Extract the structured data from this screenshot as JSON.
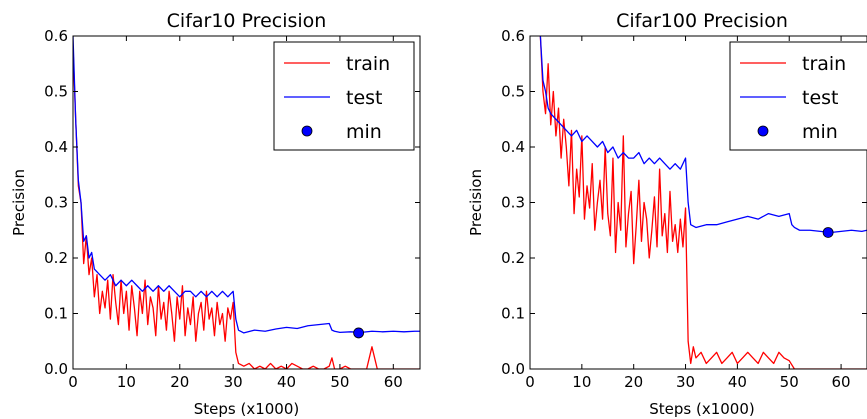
{
  "chart_data": [
    {
      "type": "line",
      "title": "Cifar10 Precision",
      "xlabel": "Steps (x1000)",
      "ylabel": "Precision",
      "xlim": [
        0,
        65
      ],
      "ylim": [
        0.0,
        0.6
      ],
      "xticks": [
        0,
        10,
        20,
        30,
        40,
        50,
        60
      ],
      "xtick_labels": [
        "0",
        "10",
        "20",
        "30",
        "40",
        "50",
        "60"
      ],
      "yticks": [
        0.0,
        0.1,
        0.2,
        0.3,
        0.4,
        0.5,
        0.6
      ],
      "ytick_labels": [
        "0.0",
        "0.1",
        "0.2",
        "0.3",
        "0.4",
        "0.5",
        "0.6"
      ],
      "legend_position": "top-right",
      "series": [
        {
          "name": "train",
          "color": "#ff0000",
          "x": [
            0,
            0.5,
            1,
            1.5,
            2,
            2.5,
            3,
            3.5,
            4,
            4.5,
            5,
            5.5,
            6,
            6.5,
            7,
            7.5,
            8,
            8.5,
            9,
            9.5,
            10,
            10.5,
            11,
            11.5,
            12,
            12.5,
            13,
            13.5,
            14,
            14.5,
            15,
            15.5,
            16,
            16.5,
            17,
            17.5,
            18,
            18.5,
            19,
            19.5,
            20,
            20.5,
            21,
            21.5,
            22,
            22.5,
            23,
            23.5,
            24,
            24.5,
            25,
            25.5,
            26,
            26.5,
            27,
            27.5,
            28,
            28.5,
            29,
            29.5,
            30,
            30.5,
            31,
            32,
            33,
            34,
            35,
            36,
            37,
            38,
            39,
            40,
            41,
            42,
            43,
            44,
            45,
            46,
            47,
            48,
            48.5,
            49,
            50,
            51,
            52,
            53,
            54,
            55,
            56,
            57,
            58,
            59,
            60,
            61,
            62,
            63,
            64,
            65
          ],
          "y": [
            0.58,
            0.45,
            0.33,
            0.3,
            0.19,
            0.24,
            0.17,
            0.2,
            0.13,
            0.17,
            0.1,
            0.14,
            0.11,
            0.16,
            0.09,
            0.17,
            0.12,
            0.08,
            0.16,
            0.1,
            0.14,
            0.07,
            0.15,
            0.11,
            0.06,
            0.14,
            0.1,
            0.16,
            0.08,
            0.13,
            0.11,
            0.06,
            0.15,
            0.09,
            0.12,
            0.07,
            0.14,
            0.1,
            0.05,
            0.13,
            0.09,
            0.15,
            0.06,
            0.11,
            0.08,
            0.13,
            0.05,
            0.1,
            0.12,
            0.07,
            0.14,
            0.09,
            0.11,
            0.06,
            0.12,
            0.08,
            0.1,
            0.05,
            0.11,
            0.09,
            0.12,
            0.03,
            0.01,
            0.005,
            0.01,
            0.0,
            0.005,
            0.0,
            0.01,
            0.0,
            0.005,
            0.0,
            0.01,
            0.005,
            0.0,
            0.0,
            0.005,
            0.0,
            0.0,
            0.005,
            0.02,
            0.0,
            0.0,
            0.005,
            0.0,
            0.0,
            0.0,
            0.0,
            0.04,
            0.0,
            0.0,
            0.0,
            0.0,
            0.0,
            0.0,
            0.0,
            0.0,
            0.0
          ]
        },
        {
          "name": "test",
          "color": "#0000ff",
          "x": [
            0,
            0.5,
            1,
            1.5,
            2,
            2.5,
            3,
            3.5,
            4,
            5,
            6,
            7,
            8,
            9,
            10,
            11,
            12,
            13,
            14,
            15,
            16,
            17,
            18,
            19,
            20,
            21,
            22,
            23,
            24,
            25,
            26,
            27,
            28,
            29,
            30,
            30.5,
            31,
            32,
            34,
            36,
            38,
            40,
            42,
            44,
            46,
            48,
            48.5,
            49,
            50,
            52,
            54,
            56,
            58,
            60,
            62,
            64,
            65
          ],
          "y": [
            0.6,
            0.45,
            0.34,
            0.3,
            0.23,
            0.24,
            0.2,
            0.21,
            0.18,
            0.17,
            0.16,
            0.17,
            0.15,
            0.16,
            0.15,
            0.16,
            0.15,
            0.14,
            0.15,
            0.14,
            0.15,
            0.14,
            0.15,
            0.14,
            0.13,
            0.14,
            0.14,
            0.13,
            0.14,
            0.13,
            0.14,
            0.13,
            0.14,
            0.13,
            0.14,
            0.09,
            0.07,
            0.065,
            0.07,
            0.068,
            0.072,
            0.075,
            0.073,
            0.078,
            0.08,
            0.082,
            0.07,
            0.068,
            0.066,
            0.067,
            0.066,
            0.068,
            0.067,
            0.068,
            0.067,
            0.068,
            0.068
          ]
        }
      ],
      "min_marker": {
        "name": "min",
        "color": "#0000ff",
        "x": 53.5,
        "y": 0.065
      }
    },
    {
      "type": "line",
      "title": "Cifar100 Precision",
      "xlabel": "Steps (x1000)",
      "ylabel": "Precision",
      "xlim": [
        0,
        65
      ],
      "ylim": [
        0.0,
        0.6
      ],
      "xticks": [
        0,
        10,
        20,
        30,
        40,
        50,
        60
      ],
      "xtick_labels": [
        "0",
        "10",
        "20",
        "30",
        "40",
        "50",
        "60"
      ],
      "yticks": [
        0.0,
        0.1,
        0.2,
        0.3,
        0.4,
        0.5,
        0.6
      ],
      "ytick_labels": [
        "0.0",
        "0.1",
        "0.2",
        "0.3",
        "0.4",
        "0.5",
        "0.6"
      ],
      "legend_position": "top-right",
      "series": [
        {
          "name": "train",
          "color": "#ff0000",
          "x": [
            2,
            2.5,
            3,
            3.5,
            4,
            4.5,
            5,
            5.5,
            6,
            6.5,
            7,
            7.5,
            8,
            8.5,
            9,
            9.5,
            10,
            10.5,
            11,
            11.5,
            12,
            12.5,
            13,
            13.5,
            14,
            14.5,
            15,
            15.5,
            16,
            16.5,
            17,
            17.5,
            18,
            18.5,
            19,
            19.5,
            20,
            20.5,
            21,
            21.5,
            22,
            22.5,
            23,
            23.5,
            24,
            24.5,
            25,
            25.5,
            26,
            26.5,
            27,
            27.5,
            28,
            28.5,
            29,
            29.5,
            30,
            30.5,
            31,
            31.5,
            32,
            33,
            34,
            35,
            36,
            37,
            38,
            39,
            40,
            41,
            42,
            43,
            44,
            45,
            46,
            47,
            48,
            49,
            50,
            51,
            52,
            54,
            56,
            58,
            60,
            62,
            64,
            65
          ],
          "y": [
            0.6,
            0.5,
            0.46,
            0.55,
            0.44,
            0.5,
            0.42,
            0.47,
            0.38,
            0.45,
            0.4,
            0.33,
            0.43,
            0.28,
            0.36,
            0.31,
            0.42,
            0.27,
            0.33,
            0.29,
            0.37,
            0.25,
            0.3,
            0.34,
            0.27,
            0.4,
            0.28,
            0.24,
            0.38,
            0.21,
            0.3,
            0.25,
            0.42,
            0.22,
            0.28,
            0.32,
            0.19,
            0.26,
            0.34,
            0.23,
            0.3,
            0.27,
            0.2,
            0.25,
            0.31,
            0.22,
            0.36,
            0.24,
            0.28,
            0.21,
            0.32,
            0.23,
            0.26,
            0.21,
            0.27,
            0.22,
            0.29,
            0.05,
            0.01,
            0.04,
            0.02,
            0.03,
            0.01,
            0.02,
            0.03,
            0.01,
            0.02,
            0.03,
            0.01,
            0.02,
            0.03,
            0.02,
            0.01,
            0.03,
            0.02,
            0.01,
            0.03,
            0.02,
            0.015,
            0.0,
            0.0,
            0.0,
            0.0,
            0.0,
            0.0,
            0.0,
            0.0,
            0.0
          ]
        },
        {
          "name": "test",
          "color": "#0000ff",
          "x": [
            2,
            2.5,
            3,
            3.5,
            4,
            5,
            6,
            7,
            8,
            9,
            10,
            11,
            12,
            13,
            14,
            15,
            16,
            17,
            18,
            19,
            20,
            21,
            22,
            23,
            24,
            25,
            26,
            27,
            28,
            29,
            30,
            30.5,
            31,
            32,
            34,
            36,
            38,
            40,
            42,
            44,
            46,
            48,
            50,
            50.5,
            51,
            52,
            54,
            56,
            58,
            60,
            62,
            64,
            65
          ],
          "y": [
            0.6,
            0.52,
            0.5,
            0.47,
            0.46,
            0.45,
            0.44,
            0.43,
            0.42,
            0.43,
            0.41,
            0.42,
            0.41,
            0.4,
            0.41,
            0.39,
            0.4,
            0.38,
            0.39,
            0.38,
            0.38,
            0.39,
            0.37,
            0.38,
            0.37,
            0.38,
            0.37,
            0.36,
            0.37,
            0.36,
            0.38,
            0.3,
            0.26,
            0.255,
            0.26,
            0.26,
            0.265,
            0.27,
            0.275,
            0.27,
            0.28,
            0.275,
            0.28,
            0.26,
            0.255,
            0.25,
            0.25,
            0.248,
            0.246,
            0.248,
            0.25,
            0.248,
            0.25
          ]
        }
      ],
      "min_marker": {
        "name": "min",
        "color": "#0000ff",
        "x": 57.5,
        "y": 0.246
      }
    }
  ]
}
